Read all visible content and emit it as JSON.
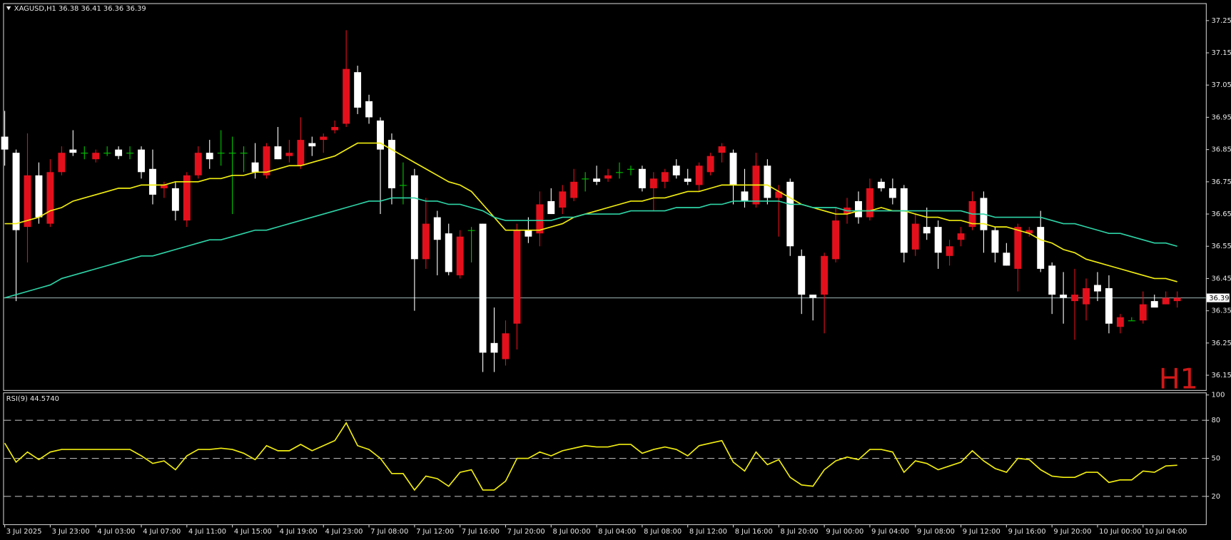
{
  "chart_data": [
    {
      "type": "candlestick",
      "header": "XAGUSD,H1  36.38 36.41 36.36 36.39",
      "timeframe_label": "H1",
      "categories": [
        "3 Jul 2025",
        null,
        null,
        null,
        "3 Jul 23:00",
        null,
        null,
        null,
        "4 Jul 03:00",
        null,
        null,
        null,
        "4 Jul 07:00",
        null,
        null,
        null,
        "4 Jul 11:00",
        null,
        null,
        null,
        "4 Jul 15:00",
        null,
        null,
        null,
        "4 Jul 19:00",
        null,
        null,
        null,
        "4 Jul 23:00",
        null,
        null,
        null,
        "7 Jul 08:00",
        null,
        null,
        null,
        "7 Jul 12:00",
        null,
        null,
        null,
        "7 Jul 16:00",
        null,
        null,
        null,
        "7 Jul 20:00",
        null,
        null,
        null,
        "8 Jul 00:00",
        null,
        null,
        null,
        "8 Jul 04:00",
        null,
        null,
        null,
        "8 Jul 08:00",
        null,
        null,
        null,
        "8 Jul 12:00",
        null,
        null,
        null,
        "8 Jul 16:00",
        null,
        null,
        null,
        "8 Jul 20:00",
        null,
        null,
        null,
        "9 Jul 00:00",
        null,
        null,
        null,
        "9 Jul 04:00",
        null,
        null,
        null,
        "9 Jul 08:00",
        null,
        null,
        null,
        "9 Jul 12:00",
        null,
        null,
        null,
        "9 Jul 16:00",
        null,
        null,
        null,
        "9 Jul 20:00",
        null,
        null,
        null,
        "10 Jul 00:00",
        null,
        null,
        null,
        "10 Jul 04:00",
        null,
        null,
        null
      ],
      "open": [
        36.89,
        36.84,
        36.61,
        36.77,
        36.62,
        36.78,
        36.85,
        36.84,
        36.82,
        36.84,
        36.85,
        36.84,
        36.85,
        36.79,
        36.73,
        36.73,
        36.63,
        36.77,
        36.84,
        36.84,
        36.84,
        36.84,
        36.81,
        36.77,
        36.86,
        36.83,
        36.8,
        36.87,
        36.88,
        36.91,
        36.93,
        37.09,
        37.0,
        36.94,
        36.88,
        36.74,
        36.77,
        36.51,
        36.64,
        36.59,
        36.46,
        36.6,
        36.62,
        36.25,
        36.2,
        36.31,
        36.6,
        36.59,
        36.69,
        36.67,
        36.7,
        36.76,
        36.76,
        36.76,
        36.78,
        36.79,
        36.79,
        36.73,
        36.75,
        36.8,
        36.76,
        36.74,
        36.78,
        36.84,
        36.84,
        36.72,
        36.68,
        36.8,
        36.7,
        36.75,
        36.52,
        36.4,
        36.4,
        36.51,
        36.65,
        36.69,
        36.64,
        36.75,
        36.73,
        36.73,
        36.54,
        36.61,
        36.61,
        36.52,
        36.57,
        36.61,
        36.7,
        36.6,
        36.53,
        36.48,
        36.59,
        36.61,
        36.49,
        36.4,
        36.38,
        36.37,
        36.43,
        36.42,
        36.3,
        36.32,
        36.32,
        36.38,
        36.37,
        36.38
      ],
      "high": [
        36.97,
        36.85,
        36.9,
        36.81,
        36.82,
        36.86,
        36.91,
        36.86,
        36.85,
        36.86,
        36.86,
        36.86,
        36.86,
        36.85,
        36.75,
        36.75,
        36.78,
        36.86,
        36.88,
        36.91,
        36.89,
        36.86,
        36.87,
        36.87,
        36.92,
        36.88,
        36.95,
        36.89,
        36.9,
        36.94,
        37.22,
        37.11,
        37.02,
        36.95,
        36.9,
        36.81,
        36.79,
        36.7,
        36.66,
        36.62,
        36.6,
        36.61,
        36.62,
        36.36,
        36.32,
        36.62,
        36.64,
        36.72,
        36.73,
        36.74,
        36.79,
        36.78,
        36.8,
        36.79,
        36.81,
        36.8,
        36.8,
        36.78,
        36.79,
        36.82,
        36.79,
        36.81,
        36.84,
        36.87,
        36.85,
        36.79,
        36.84,
        36.82,
        36.74,
        36.76,
        36.54,
        36.4,
        36.53,
        36.67,
        36.7,
        36.72,
        36.76,
        36.76,
        36.76,
        36.74,
        36.65,
        36.67,
        36.63,
        36.57,
        36.61,
        36.72,
        36.72,
        36.61,
        36.56,
        36.62,
        36.61,
        36.66,
        36.5,
        36.47,
        36.48,
        36.45,
        36.47,
        36.46,
        36.34,
        36.33,
        36.41,
        36.4,
        36.41,
        36.41
      ],
      "low": [
        36.8,
        36.38,
        36.5,
        36.62,
        36.61,
        36.77,
        36.83,
        36.82,
        36.81,
        36.83,
        36.82,
        36.82,
        36.76,
        36.68,
        36.7,
        36.63,
        36.61,
        36.76,
        36.79,
        36.8,
        36.65,
        36.78,
        36.76,
        36.76,
        36.82,
        36.81,
        36.79,
        36.83,
        36.84,
        36.9,
        36.92,
        36.96,
        36.93,
        36.65,
        36.68,
        36.68,
        36.35,
        36.48,
        36.46,
        36.46,
        36.45,
        36.5,
        36.16,
        36.16,
        36.18,
        36.23,
        36.56,
        36.55,
        36.65,
        36.65,
        36.69,
        36.72,
        36.74,
        36.75,
        36.76,
        36.77,
        36.72,
        36.66,
        36.73,
        36.76,
        36.74,
        36.72,
        36.77,
        36.81,
        36.68,
        36.67,
        36.67,
        36.68,
        36.58,
        36.52,
        36.34,
        36.32,
        36.28,
        36.5,
        36.62,
        36.62,
        36.63,
        36.72,
        36.68,
        36.5,
        36.52,
        36.57,
        36.48,
        36.49,
        36.55,
        36.6,
        36.53,
        36.5,
        36.49,
        36.41,
        36.58,
        36.47,
        36.34,
        36.31,
        36.26,
        36.32,
        36.38,
        36.28,
        36.28,
        36.32,
        36.31,
        36.37,
        36.37,
        36.36
      ],
      "close": [
        36.85,
        36.6,
        36.77,
        36.64,
        36.78,
        36.84,
        36.84,
        36.84,
        36.84,
        36.84,
        36.83,
        36.84,
        36.78,
        36.71,
        36.74,
        36.66,
        36.77,
        36.84,
        36.82,
        36.84,
        36.84,
        36.84,
        36.78,
        36.86,
        36.82,
        36.84,
        36.88,
        36.86,
        36.89,
        36.92,
        37.1,
        36.98,
        36.95,
        36.85,
        36.73,
        36.74,
        36.51,
        36.62,
        36.57,
        36.47,
        36.58,
        36.6,
        36.22,
        36.22,
        36.28,
        36.6,
        36.58,
        36.68,
        36.65,
        36.72,
        36.75,
        36.76,
        36.75,
        36.77,
        36.78,
        36.79,
        36.73,
        36.76,
        36.78,
        36.77,
        36.75,
        36.8,
        36.83,
        36.86,
        36.74,
        36.69,
        36.8,
        36.7,
        36.72,
        36.55,
        36.4,
        36.39,
        36.52,
        36.63,
        36.67,
        36.64,
        36.73,
        36.73,
        36.7,
        36.53,
        36.62,
        36.59,
        36.53,
        36.55,
        36.59,
        36.69,
        36.6,
        36.53,
        36.49,
        36.61,
        36.6,
        36.48,
        36.4,
        36.39,
        36.4,
        36.42,
        36.41,
        36.31,
        36.33,
        36.32,
        36.37,
        36.36,
        36.39,
        36.39
      ],
      "up_color": "#e3101c",
      "down_color": "#ffffff",
      "doji_color": "#00c800",
      "moving_averages": [
        {
          "color": "#f2ee10",
          "values": [
            36.62,
            36.62,
            36.63,
            36.64,
            36.66,
            36.67,
            36.69,
            36.7,
            36.71,
            36.72,
            36.73,
            36.73,
            36.74,
            36.74,
            36.74,
            36.75,
            36.75,
            36.75,
            36.76,
            36.76,
            36.77,
            36.77,
            36.78,
            36.78,
            36.79,
            36.8,
            36.8,
            36.81,
            36.82,
            36.83,
            36.85,
            36.87,
            36.87,
            36.87,
            36.85,
            36.83,
            36.81,
            36.79,
            36.77,
            36.75,
            36.74,
            36.72,
            36.68,
            36.64,
            36.6,
            36.6,
            36.6,
            36.6,
            36.61,
            36.62,
            36.64,
            36.65,
            36.66,
            36.67,
            36.68,
            36.69,
            36.69,
            36.7,
            36.7,
            36.71,
            36.72,
            36.72,
            36.73,
            36.74,
            36.74,
            36.74,
            36.74,
            36.74,
            36.72,
            36.7,
            36.68,
            36.67,
            36.66,
            36.65,
            36.65,
            36.66,
            36.66,
            36.67,
            36.66,
            36.66,
            36.65,
            36.64,
            36.64,
            36.63,
            36.63,
            36.62,
            36.62,
            36.61,
            36.61,
            36.6,
            36.59,
            36.57,
            36.56,
            36.54,
            36.53,
            36.51,
            36.5,
            36.49,
            36.48,
            36.47,
            36.46,
            36.45,
            36.45,
            36.44
          ]
        },
        {
          "color": "#2ed3a6",
          "values": [
            36.39,
            36.4,
            36.41,
            36.42,
            36.43,
            36.45,
            36.46,
            36.47,
            36.48,
            36.49,
            36.5,
            36.51,
            36.52,
            36.52,
            36.53,
            36.54,
            36.55,
            36.56,
            36.57,
            36.57,
            36.58,
            36.59,
            36.6,
            36.6,
            36.61,
            36.62,
            36.63,
            36.64,
            36.65,
            36.66,
            36.67,
            36.68,
            36.69,
            36.69,
            36.7,
            36.7,
            36.7,
            36.69,
            36.69,
            36.68,
            36.68,
            36.67,
            36.66,
            36.64,
            36.63,
            36.63,
            36.63,
            36.63,
            36.63,
            36.64,
            36.64,
            36.65,
            36.65,
            36.65,
            36.65,
            36.66,
            36.66,
            36.66,
            36.66,
            36.67,
            36.67,
            36.67,
            36.68,
            36.68,
            36.69,
            36.69,
            36.69,
            36.69,
            36.69,
            36.68,
            36.68,
            36.67,
            36.67,
            36.67,
            36.66,
            36.66,
            36.66,
            36.66,
            36.66,
            36.66,
            36.66,
            36.66,
            36.66,
            36.66,
            36.66,
            36.65,
            36.65,
            36.64,
            36.64,
            36.64,
            36.64,
            36.64,
            36.63,
            36.62,
            36.62,
            36.61,
            36.6,
            36.59,
            36.59,
            36.58,
            36.57,
            36.56,
            36.56,
            36.55
          ]
        }
      ],
      "current_price": 36.39,
      "current_price_color": "#8fa4a4",
      "ylim": [
        36.104,
        37.304
      ],
      "yticks": [
        36.15,
        36.25,
        36.35,
        36.45,
        36.55,
        36.65,
        36.75,
        36.85,
        36.95,
        {
          "value": 37.05,
          "label": "37.05"
        },
        37.15,
        37.25
      ]
    },
    {
      "type": "line",
      "header": "RSI(9) 44.5740",
      "color": "#f2ee10",
      "values": [
        62,
        47,
        55,
        49,
        55,
        57,
        57,
        57,
        57,
        57,
        57,
        57,
        52,
        46,
        48,
        41,
        52,
        57,
        57,
        58,
        57,
        54,
        49,
        60,
        56,
        56,
        61,
        56,
        60,
        64,
        78,
        60,
        57,
        50,
        38,
        38,
        25,
        36,
        34,
        28,
        39,
        41,
        25,
        25,
        32,
        50,
        50,
        55,
        52,
        56,
        58,
        60,
        59,
        59,
        61,
        61,
        54,
        57,
        59,
        57,
        52,
        60,
        62,
        64,
        47,
        40,
        55,
        45,
        49,
        35,
        29,
        28,
        41,
        48,
        51,
        49,
        57,
        57,
        55,
        39,
        48,
        46,
        41,
        44,
        47,
        56,
        48,
        42,
        39,
        50,
        49,
        41,
        36,
        35,
        35,
        39,
        39,
        31,
        33,
        33,
        40,
        39,
        44,
        44.574
      ],
      "ylim": [
        -2,
        102
      ],
      "yticks": [
        20,
        50,
        80,
        100
      ],
      "levels": [
        20,
        50,
        80
      ]
    }
  ]
}
